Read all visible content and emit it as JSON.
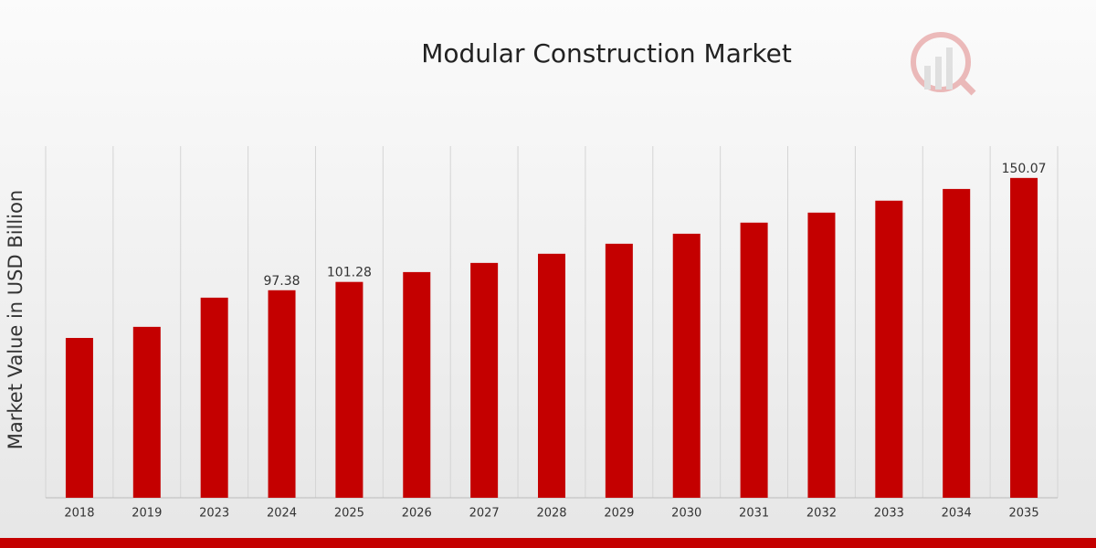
{
  "chart_data": {
    "type": "bar",
    "title": "Modular Construction Market",
    "y_label": "Market Value in USD Billion",
    "categories": [
      "2018",
      "2019",
      "2023",
      "2024",
      "2025",
      "2026",
      "2027",
      "2028",
      "2029",
      "2030",
      "2031",
      "2032",
      "2033",
      "2034",
      "2035"
    ],
    "values": [
      75.0,
      80.2,
      93.9,
      97.38,
      101.28,
      105.9,
      110.2,
      114.5,
      119.2,
      123.9,
      129.1,
      133.8,
      139.4,
      144.9,
      150.07
    ],
    "show_value_label": [
      false,
      false,
      false,
      true,
      true,
      false,
      false,
      false,
      false,
      false,
      false,
      false,
      false,
      false,
      true
    ],
    "color": "#c40000",
    "ylim": [
      0,
      165
    ],
    "grid": true
  }
}
